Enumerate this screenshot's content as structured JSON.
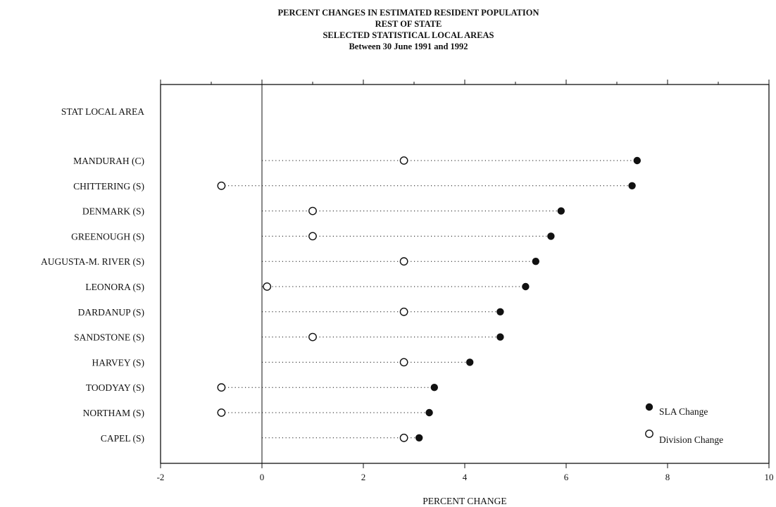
{
  "chart_data": {
    "type": "dot",
    "title_lines": [
      "PERCENT CHANGES IN ESTIMATED RESIDENT POPULATION",
      "REST OF STATE",
      "SELECTED STATISTICAL LOCAL AREAS",
      "Between 30 June 1991 and 1992"
    ],
    "category_header": "STAT LOCAL AREA",
    "xlabel": "PERCENT CHANGE",
    "xlim": [
      -2,
      10
    ],
    "xticks": [
      -2,
      0,
      2,
      4,
      6,
      8,
      10
    ],
    "xtick_labels": [
      "-2",
      "0",
      "2",
      "4",
      "6",
      "8",
      "10"
    ],
    "categories": [
      "MANDURAH (C)",
      "CHITTERING (S)",
      "DENMARK (S)",
      "GREENOUGH (S)",
      "AUGUSTA-M. RIVER (S)",
      "LEONORA (S)",
      "DARDANUP (S)",
      "SANDSTONE (S)",
      "HARVEY (S)",
      "TOODYAY (S)",
      "NORTHAM (S)",
      "CAPEL (S)"
    ],
    "series": [
      {
        "name": "SLA Change",
        "marker": "filled",
        "values": [
          7.4,
          7.3,
          5.9,
          5.7,
          5.4,
          5.2,
          4.7,
          4.7,
          4.1,
          3.4,
          3.3,
          3.1
        ]
      },
      {
        "name": "Division Change",
        "marker": "open",
        "values": [
          2.8,
          -0.8,
          1.0,
          1.0,
          2.8,
          0.1,
          2.8,
          1.0,
          2.8,
          -0.8,
          -0.8,
          2.8
        ]
      }
    ],
    "legend_position": "bottom-right",
    "grid": false
  }
}
